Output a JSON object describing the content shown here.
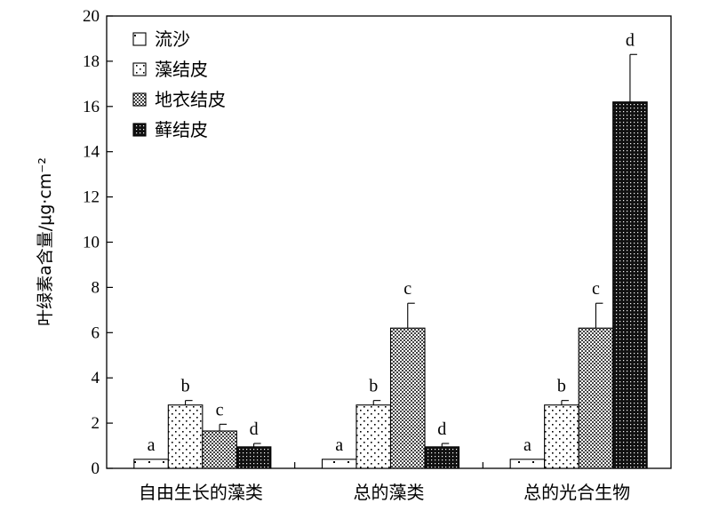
{
  "chart_data": {
    "type": "bar",
    "title": "",
    "xlabel": "",
    "ylabel": "叶绿素a含量/μg·cm⁻²",
    "ylim": [
      0,
      20
    ],
    "yticks": [
      0,
      2,
      4,
      6,
      8,
      10,
      12,
      14,
      16,
      18,
      20
    ],
    "categories": [
      "自由生长的藻类",
      "总的藻类",
      "总的光合生物"
    ],
    "legend_position": "top-left",
    "grid": false,
    "series": [
      {
        "name": "流沙",
        "pattern": "sparse-dots",
        "values": [
          0.4,
          0.4,
          0.4
        ],
        "errors": [
          0,
          0,
          0
        ],
        "letters": [
          "a",
          "a",
          "a"
        ]
      },
      {
        "name": "藻结皮",
        "pattern": "dots",
        "values": [
          2.8,
          2.8,
          2.8
        ],
        "errors": [
          0.2,
          0.2,
          0.2
        ],
        "letters": [
          "b",
          "b",
          "b"
        ]
      },
      {
        "name": "地衣结皮",
        "pattern": "crosshatch",
        "values": [
          1.65,
          6.2,
          6.2
        ],
        "errors": [
          0.3,
          1.1,
          1.1
        ],
        "letters": [
          "c",
          "c",
          "c"
        ]
      },
      {
        "name": "藓结皮",
        "pattern": "dense-checker",
        "values": [
          0.95,
          0.95,
          16.2
        ],
        "errors": [
          0.15,
          0.15,
          2.1
        ],
        "letters": [
          "d",
          "d",
          "d"
        ]
      }
    ]
  }
}
